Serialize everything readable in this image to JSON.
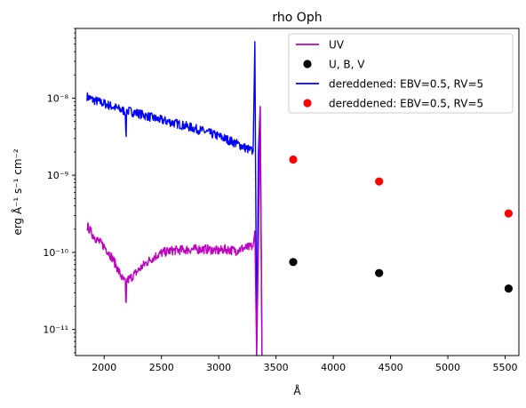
{
  "chart_data": {
    "type": "line",
    "title": "rho Oph",
    "xlabel": "Å",
    "ylabel": "erg Å⁻¹ s⁻¹ cm⁻²",
    "yscale": "log",
    "xlim": [
      1750,
      5620
    ],
    "ylim": [
      4.6e-12,
      8e-08
    ],
    "grid": false,
    "legend_position": "upper right",
    "x_ticks": [
      2000,
      2500,
      3000,
      3500,
      4000,
      4500,
      5000,
      5500
    ],
    "x_tick_labels": [
      "2000",
      "2500",
      "3000",
      "3500",
      "4000",
      "4500",
      "5000",
      "5500"
    ],
    "y_ticks": [
      1e-11,
      1e-10,
      1e-09,
      1e-08
    ],
    "y_tick_labels": [
      "10⁻¹¹",
      "10⁻¹⁰",
      "10⁻⁹",
      "10⁻⁸"
    ],
    "series": [
      {
        "name": "UV",
        "style": "line",
        "color": "#bf00bf",
        "x": [
          1850,
          1870,
          1900,
          1930,
          1960,
          2000,
          2040,
          2080,
          2120,
          2160,
          2180,
          2200,
          2240,
          2280,
          2320,
          2360,
          2400,
          2450,
          2500,
          2550,
          2600,
          2700,
          2800,
          2900,
          3000,
          3050,
          3100,
          3150,
          3200,
          3250,
          3280,
          3300
        ],
        "y": [
          2.2e-10,
          2e-10,
          1.7e-10,
          1.5e-10,
          1.35e-10,
          1.2e-10,
          1e-10,
          8e-11,
          6e-11,
          4.5e-11,
          4.2e-11,
          4.3e-11,
          4.8e-11,
          5.5e-11,
          6.3e-11,
          7.2e-11,
          8e-11,
          9e-11,
          9.8e-11,
          1.03e-10,
          1.06e-10,
          1.08e-10,
          1.1e-10,
          1.1e-10,
          1.05e-10,
          1.1e-10,
          1.08e-10,
          1.05e-10,
          1.12e-10,
          1.15e-10,
          1.18e-10,
          1.2e-10
        ]
      },
      {
        "name": "U, B, V",
        "style": "marker",
        "color": "#000000",
        "x": [
          3650,
          4400,
          5530
        ],
        "y": [
          7.5e-11,
          5.4e-11,
          3.4e-11
        ]
      },
      {
        "name": "dereddened: EBV=0.5, RV=5",
        "style": "line",
        "color": "#0000ff",
        "x": [
          1850,
          1900,
          1950,
          2000,
          2050,
          2100,
          2150,
          2180,
          2200,
          2250,
          2300,
          2350,
          2400,
          2450,
          2500,
          2550,
          2600,
          2700,
          2800,
          2900,
          3000,
          3050,
          3100,
          3150,
          3200,
          3250,
          3280,
          3300
        ],
        "y": [
          1.05e-08,
          9.5e-09,
          9e-09,
          8.5e-09,
          8e-09,
          7.5e-09,
          7e-09,
          6.8e-09,
          6.9e-09,
          6.6e-09,
          6.3e-09,
          6e-09,
          5.7e-09,
          5.4e-09,
          5.2e-09,
          5e-09,
          4.8e-09,
          4.4e-09,
          4e-09,
          3.6e-09,
          3.2e-09,
          3e-09,
          2.8e-09,
          2.6e-09,
          2.4e-09,
          2.2e-09,
          2.1e-09,
          2e-09
        ]
      },
      {
        "name": "dereddened: EBV=0.5, RV=5",
        "style": "marker",
        "color": "#ff0000",
        "x": [
          3650,
          4400,
          5530
        ],
        "y": [
          1.6e-09,
          8.3e-10,
          3.2e-10
        ]
      }
    ]
  }
}
